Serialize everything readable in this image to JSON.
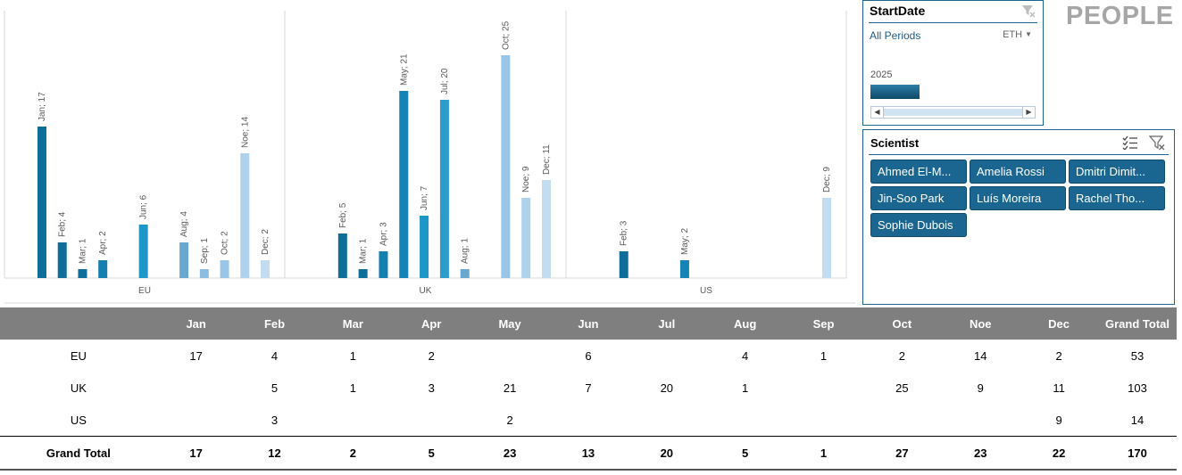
{
  "chart_data": {
    "type": "bar",
    "groups": [
      {
        "name": "EU",
        "bars": [
          {
            "label": "Jan; 17",
            "month": "Jan",
            "value": 17
          },
          {
            "label": "Feb; 4",
            "month": "Feb",
            "value": 4
          },
          {
            "label": "Mar; 1",
            "month": "Mar",
            "value": 1
          },
          {
            "label": "Apr; 2",
            "month": "Apr",
            "value": 2
          },
          {
            "label": "Jun; 6",
            "month": "Jun",
            "value": 6
          },
          {
            "label": "Aug; 4",
            "month": "Aug",
            "value": 4
          },
          {
            "label": "Sep; 1",
            "month": "Sep",
            "value": 1
          },
          {
            "label": "Oct; 2",
            "month": "Oct",
            "value": 2
          },
          {
            "label": "Noe; 14",
            "month": "Noe",
            "value": 14
          },
          {
            "label": "Dec; 2",
            "month": "Dec",
            "value": 2
          }
        ]
      },
      {
        "name": "UK",
        "bars": [
          {
            "label": "Feb; 5",
            "month": "Feb",
            "value": 5
          },
          {
            "label": "Mar; 1",
            "month": "Mar",
            "value": 1
          },
          {
            "label": "Apr; 3",
            "month": "Apr",
            "value": 3
          },
          {
            "label": "May; 21",
            "month": "May",
            "value": 21
          },
          {
            "label": "Jun; 7",
            "month": "Jun",
            "value": 7
          },
          {
            "label": "Jul; 20",
            "month": "Jul",
            "value": 20
          },
          {
            "label": "Aug; 1",
            "month": "Aug",
            "value": 1
          },
          {
            "label": "Oct; 25",
            "month": "Oct",
            "value": 25
          },
          {
            "label": "Noe; 9",
            "month": "Noe",
            "value": 9
          },
          {
            "label": "Dec; 11",
            "month": "Dec",
            "value": 11
          }
        ]
      },
      {
        "name": "US",
        "bars": [
          {
            "label": "Feb; 3",
            "month": "Feb",
            "value": 3
          },
          {
            "label": "May; 2",
            "month": "May",
            "value": 2
          },
          {
            "label": "Dec; 9",
            "month": "Dec",
            "value": 9
          }
        ]
      }
    ],
    "months": [
      "Jan",
      "Feb",
      "Mar",
      "Apr",
      "May",
      "Jun",
      "Jul",
      "Aug",
      "Sep",
      "Oct",
      "Noe",
      "Dec"
    ],
    "month_colors": {
      "Jan": "#0e6e99",
      "Feb": "#0e6e99",
      "Mar": "#0e6e99",
      "Apr": "#1480b0",
      "May": "#1583b5",
      "Jun": "#1d96c8",
      "Jul": "#2e9ccb",
      "Aug": "#6aa8d0",
      "Sep": "#8cbde0",
      "Oct": "#99c6e6",
      "Noe": "#aed1ec",
      "Dec": "#c3dcf0"
    },
    "ylim": [
      0,
      25
    ],
    "grid": false,
    "legend": "none"
  },
  "timeline": {
    "title": "StartDate",
    "periods_label": "All Periods",
    "level_label": "ETH",
    "year_label": "2025"
  },
  "brand": {
    "title": "PEOPLE"
  },
  "scientist": {
    "title": "Scientist",
    "items": [
      "Ahmed El-M...",
      "Amelia Rossi",
      "Dmitri Dimit...",
      "Jin-Soo Park",
      "Luís Moreira",
      "Rachel Tho...",
      "Sophie Dubois"
    ]
  },
  "pivot": {
    "columns": [
      "",
      "Jan",
      "Feb",
      "Mar",
      "Apr",
      "May",
      "Jun",
      "Jul",
      "Aug",
      "Sep",
      "Oct",
      "Noe",
      "Dec",
      "Grand Total"
    ],
    "rows": [
      [
        "EU",
        "17",
        "4",
        "1",
        "2",
        "",
        "6",
        "",
        "4",
        "1",
        "2",
        "14",
        "2",
        "53"
      ],
      [
        "UK",
        "",
        "5",
        "1",
        "3",
        "21",
        "7",
        "20",
        "1",
        "",
        "25",
        "9",
        "11",
        "103"
      ],
      [
        "US",
        "",
        "3",
        "",
        "",
        "2",
        "",
        "",
        "",
        "",
        "",
        "",
        "9",
        "14"
      ]
    ],
    "total_row": [
      "Grand Total",
      "17",
      "12",
      "2",
      "5",
      "23",
      "13",
      "20",
      "5",
      "1",
      "27",
      "23",
      "22",
      "170"
    ]
  }
}
